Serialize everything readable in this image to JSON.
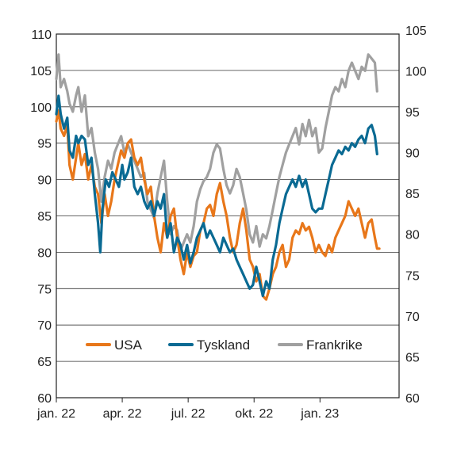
{
  "chart_data": {
    "type": "line",
    "title": "",
    "xlabel": "",
    "ylabel": "",
    "x_ticks": [
      "jan. 22",
      "apr. 22",
      "jul. 22",
      "okt. 22",
      "jan. 23"
    ],
    "x_tick_months": [
      0,
      3,
      6,
      9,
      12
    ],
    "x_range_months": [
      0,
      15.6
    ],
    "y_left": {
      "ticks": [
        "110",
        "105",
        "100",
        "95",
        "90",
        "85",
        "80",
        "75",
        "70",
        "65",
        "60"
      ],
      "ylim": [
        60,
        110
      ]
    },
    "y_right": {
      "ticks": [
        "105",
        "100",
        "95",
        "90",
        "85",
        "80",
        "75",
        "70",
        "65",
        "60"
      ],
      "ylim": [
        60,
        104.5
      ]
    },
    "grid": true,
    "legend_position": "bottom-center",
    "series": [
      {
        "name": "USA",
        "color": "#E8771A",
        "axis": "left",
        "points": [
          [
            0,
            98
          ],
          [
            0.1,
            99.5
          ],
          [
            0.2,
            97
          ],
          [
            0.35,
            96
          ],
          [
            0.5,
            97.5
          ],
          [
            0.6,
            92
          ],
          [
            0.75,
            90
          ],
          [
            0.9,
            93
          ],
          [
            1.0,
            95
          ],
          [
            1.15,
            92
          ],
          [
            1.3,
            93.5
          ],
          [
            1.45,
            90
          ],
          [
            1.6,
            92
          ],
          [
            1.75,
            89
          ],
          [
            1.9,
            88
          ],
          [
            2.05,
            84
          ],
          [
            2.2,
            88
          ],
          [
            2.35,
            85
          ],
          [
            2.5,
            87
          ],
          [
            2.65,
            90
          ],
          [
            2.8,
            92
          ],
          [
            2.95,
            94
          ],
          [
            3.1,
            93
          ],
          [
            3.25,
            95
          ],
          [
            3.4,
            95.5
          ],
          [
            3.55,
            93
          ],
          [
            3.7,
            92
          ],
          [
            3.85,
            93
          ],
          [
            4.0,
            90
          ],
          [
            4.15,
            88
          ],
          [
            4.3,
            89
          ],
          [
            4.45,
            85
          ],
          [
            4.6,
            82
          ],
          [
            4.75,
            80
          ],
          [
            4.9,
            84
          ],
          [
            5.05,
            82
          ],
          [
            5.2,
            85
          ],
          [
            5.35,
            86
          ],
          [
            5.5,
            82
          ],
          [
            5.65,
            79
          ],
          [
            5.8,
            77
          ],
          [
            5.95,
            80
          ],
          [
            6.1,
            78
          ],
          [
            6.25,
            79.5
          ],
          [
            6.4,
            80
          ],
          [
            6.55,
            83
          ],
          [
            6.7,
            84
          ],
          [
            6.85,
            86
          ],
          [
            7.0,
            86.5
          ],
          [
            7.15,
            85
          ],
          [
            7.3,
            88
          ],
          [
            7.45,
            89.5
          ],
          [
            7.6,
            87
          ],
          [
            7.75,
            85
          ],
          [
            7.9,
            82
          ],
          [
            8.05,
            80
          ],
          [
            8.2,
            81
          ],
          [
            8.35,
            84
          ],
          [
            8.5,
            86
          ],
          [
            8.65,
            83
          ],
          [
            8.8,
            79
          ],
          [
            8.95,
            78
          ],
          [
            9.1,
            76
          ],
          [
            9.25,
            77
          ],
          [
            9.4,
            74
          ],
          [
            9.55,
            73.5
          ],
          [
            9.7,
            75
          ],
          [
            9.85,
            77
          ],
          [
            10.0,
            78
          ],
          [
            10.15,
            80
          ],
          [
            10.3,
            81
          ],
          [
            10.45,
            78
          ],
          [
            10.6,
            79
          ],
          [
            10.75,
            82
          ],
          [
            10.9,
            83
          ],
          [
            11.05,
            82.5
          ],
          [
            11.2,
            84
          ],
          [
            11.35,
            83
          ],
          [
            11.5,
            83.5
          ],
          [
            11.65,
            82
          ],
          [
            11.8,
            80
          ],
          [
            11.95,
            81
          ],
          [
            12.1,
            80
          ],
          [
            12.25,
            79.5
          ],
          [
            12.4,
            81
          ],
          [
            12.55,
            80
          ],
          [
            12.7,
            82
          ],
          [
            12.85,
            83
          ],
          [
            13.0,
            84
          ],
          [
            13.15,
            85
          ],
          [
            13.3,
            87
          ],
          [
            13.45,
            86
          ],
          [
            13.6,
            85
          ],
          [
            13.75,
            86
          ],
          [
            13.9,
            84
          ],
          [
            14.05,
            82
          ],
          [
            14.2,
            84
          ],
          [
            14.35,
            84.5
          ],
          [
            14.5,
            82
          ],
          [
            14.6,
            80.5
          ],
          [
            14.7,
            80.5
          ]
        ]
      },
      {
        "name": "Tyskland",
        "color": "#0A6A93",
        "axis": "left",
        "points": [
          [
            0,
            99
          ],
          [
            0.1,
            101.5
          ],
          [
            0.2,
            99
          ],
          [
            0.35,
            97
          ],
          [
            0.5,
            98.5
          ],
          [
            0.6,
            94
          ],
          [
            0.75,
            93
          ],
          [
            0.9,
            96
          ],
          [
            1.0,
            95
          ],
          [
            1.15,
            96
          ],
          [
            1.3,
            95.5
          ],
          [
            1.45,
            92
          ],
          [
            1.6,
            93
          ],
          [
            1.75,
            88
          ],
          [
            1.9,
            84
          ],
          [
            2.0,
            80
          ],
          [
            2.1,
            86
          ],
          [
            2.25,
            90
          ],
          [
            2.4,
            89
          ],
          [
            2.55,
            91
          ],
          [
            2.7,
            90
          ],
          [
            2.85,
            89
          ],
          [
            3.0,
            92
          ],
          [
            3.1,
            90
          ],
          [
            3.25,
            91
          ],
          [
            3.4,
            93
          ],
          [
            3.55,
            89
          ],
          [
            3.7,
            88
          ],
          [
            3.85,
            89
          ],
          [
            4.0,
            87
          ],
          [
            4.15,
            86
          ],
          [
            4.3,
            87
          ],
          [
            4.45,
            85
          ],
          [
            4.6,
            87
          ],
          [
            4.75,
            86
          ],
          [
            4.9,
            88
          ],
          [
            5.05,
            82
          ],
          [
            5.2,
            84
          ],
          [
            5.35,
            80
          ],
          [
            5.5,
            82
          ],
          [
            5.65,
            81
          ],
          [
            5.8,
            79
          ],
          [
            5.95,
            81
          ],
          [
            6.1,
            78.5
          ],
          [
            6.25,
            80
          ],
          [
            6.4,
            82
          ],
          [
            6.55,
            83
          ],
          [
            6.7,
            84
          ],
          [
            6.85,
            82
          ],
          [
            7.0,
            83
          ],
          [
            7.15,
            82
          ],
          [
            7.3,
            81
          ],
          [
            7.45,
            80
          ],
          [
            7.6,
            82
          ],
          [
            7.75,
            81
          ],
          [
            7.9,
            80
          ],
          [
            8.05,
            80.5
          ],
          [
            8.2,
            79
          ],
          [
            8.35,
            78
          ],
          [
            8.5,
            77
          ],
          [
            8.65,
            76
          ],
          [
            8.8,
            75
          ],
          [
            8.95,
            75.5
          ],
          [
            9.1,
            78
          ],
          [
            9.25,
            76
          ],
          [
            9.4,
            74
          ],
          [
            9.55,
            76
          ],
          [
            9.7,
            75
          ],
          [
            9.85,
            79
          ],
          [
            10.0,
            81
          ],
          [
            10.15,
            84
          ],
          [
            10.3,
            86
          ],
          [
            10.45,
            88
          ],
          [
            10.6,
            89
          ],
          [
            10.75,
            90
          ],
          [
            10.9,
            89
          ],
          [
            11.05,
            90.5
          ],
          [
            11.2,
            89
          ],
          [
            11.35,
            90
          ],
          [
            11.5,
            88
          ],
          [
            11.65,
            86
          ],
          [
            11.8,
            85.5
          ],
          [
            11.95,
            86
          ],
          [
            12.1,
            86
          ],
          [
            12.25,
            88
          ],
          [
            12.4,
            90
          ],
          [
            12.55,
            92
          ],
          [
            12.7,
            93
          ],
          [
            12.85,
            94
          ],
          [
            13.0,
            93.5
          ],
          [
            13.15,
            94.5
          ],
          [
            13.3,
            94
          ],
          [
            13.45,
            95
          ],
          [
            13.6,
            94.5
          ],
          [
            13.75,
            95.5
          ],
          [
            13.9,
            96
          ],
          [
            14.05,
            95
          ],
          [
            14.2,
            97
          ],
          [
            14.35,
            97.5
          ],
          [
            14.5,
            96
          ],
          [
            14.6,
            93.5
          ]
        ]
      },
      {
        "name": "Frankrike",
        "color": "#A0A0A0",
        "axis": "right",
        "points": [
          [
            0,
            99
          ],
          [
            0.1,
            102
          ],
          [
            0.2,
            98
          ],
          [
            0.35,
            99
          ],
          [
            0.5,
            97.5
          ],
          [
            0.6,
            96
          ],
          [
            0.75,
            95
          ],
          [
            0.9,
            97
          ],
          [
            1.0,
            98
          ],
          [
            1.15,
            95
          ],
          [
            1.3,
            97
          ],
          [
            1.45,
            92
          ],
          [
            1.6,
            93
          ],
          [
            1.75,
            90
          ],
          [
            1.9,
            88
          ],
          [
            2.05,
            84
          ],
          [
            2.2,
            87
          ],
          [
            2.35,
            89
          ],
          [
            2.5,
            88
          ],
          [
            2.65,
            90
          ],
          [
            2.8,
            91
          ],
          [
            2.95,
            92
          ],
          [
            3.1,
            90
          ],
          [
            3.25,
            91
          ],
          [
            3.4,
            90
          ],
          [
            3.55,
            89
          ],
          [
            3.7,
            88
          ],
          [
            3.85,
            87
          ],
          [
            4.0,
            87.5
          ],
          [
            4.15,
            84
          ],
          [
            4.3,
            83
          ],
          [
            4.45,
            82
          ],
          [
            4.6,
            85
          ],
          [
            4.75,
            87
          ],
          [
            4.9,
            89
          ],
          [
            5.05,
            84
          ],
          [
            5.2,
            80
          ],
          [
            5.35,
            81
          ],
          [
            5.5,
            80.5
          ],
          [
            5.65,
            78
          ],
          [
            5.8,
            79
          ],
          [
            5.95,
            80
          ],
          [
            6.1,
            79
          ],
          [
            6.25,
            81
          ],
          [
            6.4,
            84
          ],
          [
            6.55,
            85.5
          ],
          [
            6.7,
            86.5
          ],
          [
            6.85,
            87
          ],
          [
            7.0,
            88
          ],
          [
            7.15,
            90
          ],
          [
            7.3,
            91
          ],
          [
            7.45,
            90.5
          ],
          [
            7.6,
            88
          ],
          [
            7.75,
            86
          ],
          [
            7.9,
            85
          ],
          [
            8.05,
            86
          ],
          [
            8.2,
            88
          ],
          [
            8.35,
            87
          ],
          [
            8.5,
            85
          ],
          [
            8.65,
            83
          ],
          [
            8.8,
            80
          ],
          [
            8.95,
            79
          ],
          [
            9.1,
            81
          ],
          [
            9.25,
            78.5
          ],
          [
            9.4,
            80
          ],
          [
            9.55,
            79.5
          ],
          [
            9.7,
            81
          ],
          [
            9.85,
            83
          ],
          [
            10.0,
            85
          ],
          [
            10.15,
            87
          ],
          [
            10.3,
            88.5
          ],
          [
            10.45,
            90
          ],
          [
            10.6,
            91
          ],
          [
            10.75,
            92
          ],
          [
            10.9,
            93
          ],
          [
            11.05,
            91
          ],
          [
            11.2,
            93.5
          ],
          [
            11.35,
            92
          ],
          [
            11.5,
            94
          ],
          [
            11.65,
            92
          ],
          [
            11.8,
            93
          ],
          [
            11.95,
            90
          ],
          [
            12.1,
            90.5
          ],
          [
            12.25,
            93
          ],
          [
            12.4,
            95
          ],
          [
            12.55,
            97
          ],
          [
            12.7,
            98
          ],
          [
            12.85,
            97.5
          ],
          [
            13.0,
            99
          ],
          [
            13.15,
            98
          ],
          [
            13.3,
            100
          ],
          [
            13.45,
            101
          ],
          [
            13.6,
            100
          ],
          [
            13.75,
            99
          ],
          [
            13.9,
            100.5
          ],
          [
            14.05,
            100
          ],
          [
            14.2,
            102
          ],
          [
            14.35,
            101.5
          ],
          [
            14.5,
            101
          ],
          [
            14.6,
            97.5
          ]
        ]
      }
    ]
  }
}
